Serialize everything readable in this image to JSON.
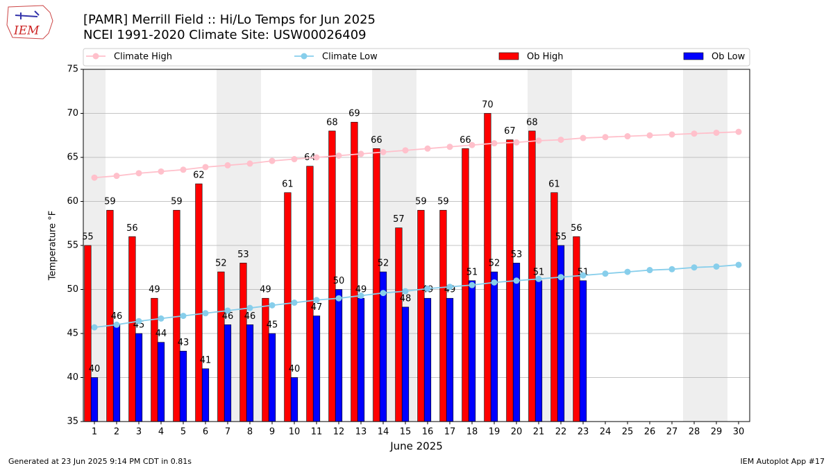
{
  "chart_data": {
    "type": "bar",
    "title": "[PAMR] Merrill Field :: Hi/Lo Temps for Jun 2025",
    "subtitle": "NCEI 1991-2020 Climate Site: USW00026409",
    "xlabel": "June 2025",
    "ylabel": "Temperature °F",
    "logo_text": "IEM",
    "footer_left": "Generated at 23 Jun 2025 9:14 PM CDT in 0.81s",
    "footer_right": "IEM Autoplot App #17",
    "x": [
      1,
      2,
      3,
      4,
      5,
      6,
      7,
      8,
      9,
      10,
      11,
      12,
      13,
      14,
      15,
      16,
      17,
      18,
      19,
      20,
      21,
      22,
      23,
      24,
      25,
      26,
      27,
      28,
      29,
      30
    ],
    "xlim": [
      0.5,
      30.5
    ],
    "xticks": [
      1,
      2,
      3,
      4,
      5,
      6,
      7,
      8,
      9,
      10,
      11,
      12,
      13,
      14,
      15,
      16,
      17,
      18,
      19,
      20,
      21,
      22,
      23,
      24,
      25,
      26,
      27,
      28,
      29,
      30
    ],
    "ylim": [
      35,
      75
    ],
    "yticks": [
      35,
      40,
      45,
      50,
      55,
      60,
      65,
      70,
      75
    ],
    "grid": true,
    "shaded_days": [
      1,
      7,
      8,
      14,
      15,
      21,
      22,
      28,
      29
    ],
    "series": [
      {
        "name": "Climate High",
        "color": "#ffc0cb",
        "kind": "line",
        "values": [
          62.7,
          62.9,
          63.2,
          63.4,
          63.6,
          63.9,
          64.1,
          64.3,
          64.6,
          64.8,
          65.0,
          65.2,
          65.4,
          65.6,
          65.8,
          66.0,
          66.2,
          66.4,
          66.6,
          66.7,
          66.9,
          67.0,
          67.2,
          67.3,
          67.4,
          67.5,
          67.6,
          67.7,
          67.8,
          67.9
        ]
      },
      {
        "name": "Climate Low",
        "color": "#87ceeb",
        "kind": "line",
        "values": [
          45.7,
          46.0,
          46.4,
          46.7,
          47.0,
          47.3,
          47.6,
          47.9,
          48.2,
          48.5,
          48.8,
          49.0,
          49.3,
          49.6,
          49.8,
          50.1,
          50.3,
          50.5,
          50.8,
          51.0,
          51.2,
          51.4,
          51.6,
          51.8,
          52.0,
          52.2,
          52.3,
          52.5,
          52.6,
          52.8
        ]
      },
      {
        "name": "Ob High",
        "color": "#ff0000",
        "kind": "bar",
        "values": [
          55,
          59,
          56,
          49,
          59,
          62,
          52,
          53,
          49,
          61,
          64,
          68,
          69,
          66,
          57,
          59,
          59,
          66,
          70,
          67,
          68,
          61,
          56,
          null,
          null,
          null,
          null,
          null,
          null,
          null
        ]
      },
      {
        "name": "Ob Low",
        "color": "#0000ff",
        "kind": "bar",
        "values": [
          40,
          46,
          45,
          44,
          43,
          41,
          46,
          46,
          45,
          40,
          47,
          50,
          49,
          52,
          48,
          49,
          49,
          51,
          52,
          53,
          51,
          55,
          51,
          null,
          null,
          null,
          null,
          null,
          null,
          null
        ]
      }
    ]
  }
}
